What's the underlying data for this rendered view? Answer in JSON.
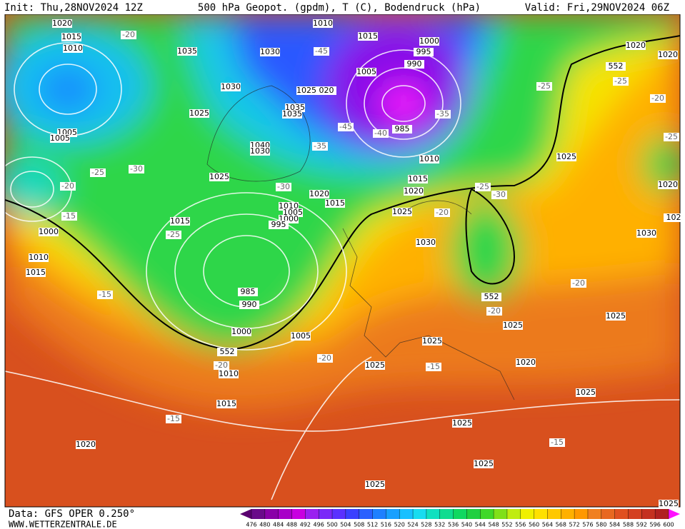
{
  "header": {
    "init": "Init: Thu,28NOV2024 12Z",
    "title": "500 hPa Geopot. (gpdm), T (C), Bodendruck (hPa)",
    "valid": "Valid: Fri,29NOV2024 06Z"
  },
  "footer": {
    "source": "Data: GFS OPER 0.250°",
    "site": "WWW.WETTERZENTRALE.DE"
  },
  "map": {
    "pressure_labels": [
      "1020",
      "1015",
      "1010",
      "1035",
      "1030",
      "1010",
      "1015",
      "1000",
      "995",
      "990",
      "1005",
      "1030",
      "1025",
      "020",
      "1035",
      "1035",
      "1025",
      "985",
      "1005",
      "1005",
      "1040",
      "1030",
      "1010",
      "1025",
      "1015",
      "1020",
      "1020",
      "1015",
      "1010",
      "1005",
      "1000",
      "995",
      "1025",
      "1015",
      "1000",
      "1030",
      "1010",
      "1015",
      "985",
      "990",
      "1000",
      "1005",
      "1025",
      "1025",
      "1025",
      "1010",
      "1020",
      "1015",
      "1025",
      "1025",
      "1020",
      "1025",
      "1025",
      "1025",
      "1020",
      "1020",
      "1030",
      "1025",
      "1020",
      "102",
      "1025",
      "552",
      "552",
      "552"
    ],
    "temperature_labels": [
      "-20",
      "-45",
      "-25",
      "-25",
      "-20",
      "-35",
      "-45",
      "-40",
      "-35",
      "-25",
      "-25",
      "-30",
      "-20",
      "-30",
      "-25",
      "-30",
      "-20",
      "-15",
      "-25",
      "-20",
      "-15",
      "-20",
      "-20",
      "-20",
      "-15",
      "-15",
      "-15"
    ]
  },
  "colorbar": {
    "ticks": [
      476,
      480,
      484,
      488,
      492,
      496,
      500,
      504,
      508,
      512,
      516,
      520,
      524,
      528,
      532,
      536,
      540,
      544,
      548,
      552,
      556,
      560,
      564,
      568,
      572,
      576,
      580,
      584,
      588,
      592,
      596,
      600
    ],
    "colors": [
      "#5a0070",
      "#6a0a8a",
      "#8a00a8",
      "#a800c8",
      "#c800e0",
      "#9a20f0",
      "#7a28f8",
      "#5a30ff",
      "#3a40ff",
      "#2a60ff",
      "#1e80ff",
      "#18a0ff",
      "#18c0ff",
      "#18dcf0",
      "#10e0c0",
      "#10dc90",
      "#10d860",
      "#20d040",
      "#40d828",
      "#80e018",
      "#c0ec10",
      "#f0f000",
      "#ffe000",
      "#ffc800",
      "#ffb000",
      "#ff9800",
      "#f08020",
      "#e86820",
      "#e05020",
      "#d44020",
      "#c43020",
      "#b02020",
      "#ff10ff"
    ]
  }
}
